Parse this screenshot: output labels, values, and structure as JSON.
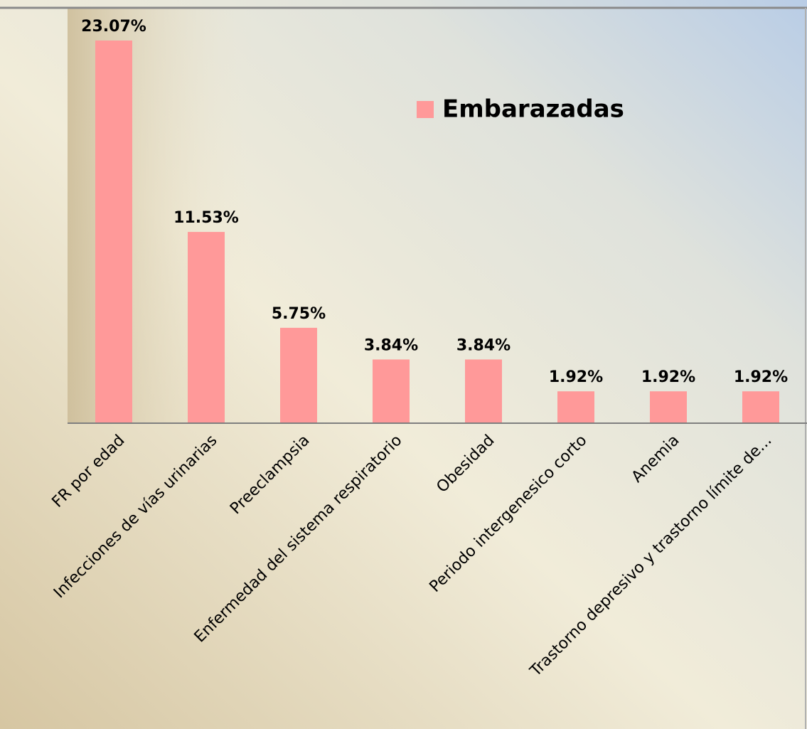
{
  "chart_data": {
    "type": "bar",
    "categories": [
      "FR por edad",
      "Infecciones de vías urinarias",
      "Preeclampsia",
      "Enfermedad del sistema respiratorio",
      "Obesidad",
      "Periodo intergenesico corto",
      "Anemia",
      "Trastorno depresivo y trastorno límite de..."
    ],
    "series": [
      {
        "name": "Embarazadas",
        "color": "#ff9999",
        "values": [
          23.07,
          11.53,
          5.75,
          3.84,
          3.84,
          1.92,
          1.92,
          1.92
        ],
        "value_labels": [
          "23.07%",
          "11.53%",
          "5.75%",
          "3.84%",
          "3.84%",
          "1.92%",
          "1.92%",
          "1.92%"
        ]
      }
    ],
    "legend": "top-right"
  }
}
